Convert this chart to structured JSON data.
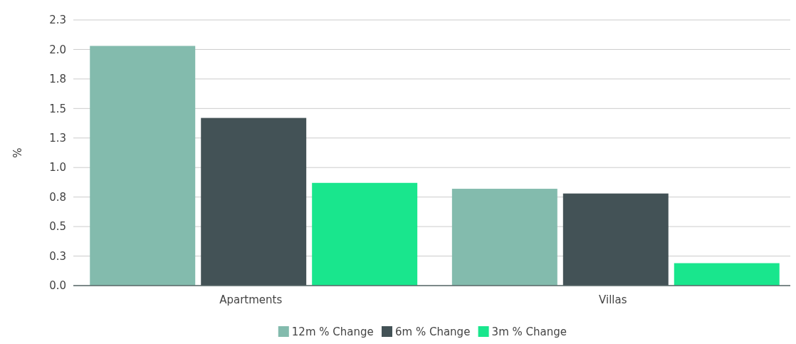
{
  "chart_data": {
    "type": "bar",
    "ylabel": "%",
    "categories": [
      "Apartments",
      "Villas"
    ],
    "series": [
      {
        "name": "12m % Change",
        "color": "#83bbad",
        "values": [
          2.03,
          0.82
        ]
      },
      {
        "name": "6m % Change",
        "color": "#435256",
        "values": [
          1.42,
          0.78
        ]
      },
      {
        "name": "3m % Change",
        "color": "#19e68d",
        "values": [
          0.87,
          0.19
        ]
      }
    ],
    "ylim": [
      0,
      2.25
    ],
    "yticks": [
      {
        "value": 0,
        "label": "0.0"
      },
      {
        "value": 0.25,
        "label": "0.3"
      },
      {
        "value": 0.5,
        "label": "0.5"
      },
      {
        "value": 0.75,
        "label": "0.8"
      },
      {
        "value": 1,
        "label": "1.0"
      },
      {
        "value": 1.25,
        "label": "1.3"
      },
      {
        "value": 1.5,
        "label": "1.5"
      },
      {
        "value": 1.75,
        "label": "1.8"
      },
      {
        "value": 2,
        "label": "2.0"
      },
      {
        "value": 2.25,
        "label": "2.3"
      }
    ],
    "grid": "y",
    "legend": "bottom"
  }
}
